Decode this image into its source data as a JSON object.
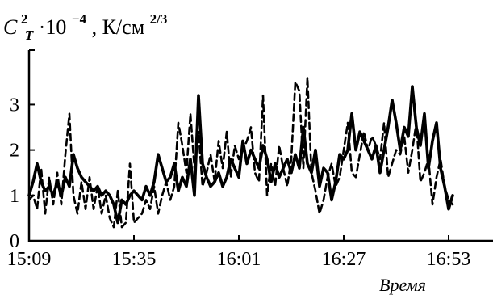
{
  "chart_data": {
    "type": "line",
    "title": "",
    "ylabel": {
      "symbol": "C",
      "subscript": "T",
      "superscript": "2",
      "factor": "·10",
      "exponent": "−4",
      "unit": ",  К/см",
      "unit_exponent": "2/3"
    },
    "xlabel": "Время",
    "xlim": [
      0,
      100
    ],
    "ylim": [
      0,
      4.2
    ],
    "y_ticks": [
      0,
      1,
      2,
      3
    ],
    "x_ticks": [
      {
        "label": "15:09",
        "x": 0
      },
      {
        "label": "15:35",
        "x": 26
      },
      {
        "label": "16:01",
        "x": 52
      },
      {
        "label": "16:27",
        "x": 78
      },
      {
        "label": "16:53",
        "x": 104
      }
    ],
    "grid": false,
    "legend": "none",
    "series": [
      {
        "style": "solid",
        "color": "#000000",
        "points": [
          [
            0,
            1.0
          ],
          [
            1,
            1.3
          ],
          [
            2,
            1.7
          ],
          [
            3,
            1.3
          ],
          [
            4,
            1.1
          ],
          [
            5,
            1.2
          ],
          [
            6,
            1.0
          ],
          [
            7,
            1.3
          ],
          [
            8,
            1.0
          ],
          [
            9,
            1.4
          ],
          [
            10,
            1.2
          ],
          [
            11,
            1.9
          ],
          [
            12,
            1.6
          ],
          [
            13,
            1.4
          ],
          [
            14,
            1.3
          ],
          [
            15,
            1.2
          ],
          [
            16,
            1.1
          ],
          [
            17,
            1.2
          ],
          [
            18,
            1.0
          ],
          [
            19,
            1.1
          ],
          [
            20,
            1.0
          ],
          [
            21,
            0.8
          ],
          [
            22,
            0.4
          ],
          [
            23,
            0.9
          ],
          [
            24,
            0.8
          ],
          [
            25,
            1.0
          ],
          [
            26,
            1.1
          ],
          [
            27,
            1.0
          ],
          [
            28,
            0.9
          ],
          [
            29,
            1.2
          ],
          [
            30,
            1.0
          ],
          [
            31,
            1.3
          ],
          [
            32,
            1.9
          ],
          [
            33,
            1.6
          ],
          [
            34,
            1.3
          ],
          [
            35,
            1.4
          ],
          [
            36,
            1.7
          ],
          [
            37,
            1.1
          ],
          [
            38,
            1.4
          ],
          [
            39,
            1.2
          ],
          [
            40,
            1.8
          ],
          [
            41,
            1.0
          ],
          [
            42,
            3.2
          ],
          [
            43,
            1.7
          ],
          [
            44,
            1.4
          ],
          [
            45,
            1.2
          ],
          [
            46,
            1.3
          ],
          [
            47,
            1.5
          ],
          [
            48,
            1.2
          ],
          [
            49,
            1.4
          ],
          [
            50,
            1.8
          ],
          [
            51,
            1.6
          ],
          [
            52,
            1.4
          ],
          [
            53,
            2.2
          ],
          [
            54,
            1.7
          ],
          [
            55,
            2.0
          ],
          [
            56,
            1.8
          ],
          [
            57,
            1.6
          ],
          [
            58,
            2.1
          ],
          [
            59,
            1.8
          ],
          [
            60,
            1.3
          ],
          [
            61,
            1.7
          ],
          [
            62,
            1.4
          ],
          [
            63,
            1.6
          ],
          [
            64,
            1.8
          ],
          [
            65,
            1.5
          ],
          [
            66,
            1.9
          ],
          [
            67,
            1.6
          ],
          [
            68,
            2.5
          ],
          [
            69,
            1.7
          ],
          [
            70,
            1.5
          ],
          [
            71,
            2.0
          ],
          [
            72,
            1.2
          ],
          [
            73,
            1.6
          ],
          [
            74,
            1.5
          ],
          [
            75,
            0.9
          ],
          [
            76,
            1.3
          ],
          [
            77,
            1.9
          ],
          [
            78,
            1.8
          ],
          [
            79,
            2.0
          ],
          [
            80,
            2.8
          ],
          [
            81,
            2.0
          ],
          [
            82,
            2.4
          ],
          [
            83,
            2.2
          ],
          [
            84,
            2.0
          ],
          [
            85,
            1.8
          ],
          [
            86,
            2.1
          ],
          [
            87,
            1.5
          ],
          [
            88,
            2.0
          ],
          [
            89,
            2.5
          ],
          [
            90,
            3.1
          ],
          [
            91,
            2.6
          ],
          [
            92,
            2.0
          ],
          [
            93,
            2.5
          ],
          [
            94,
            2.3
          ],
          [
            95,
            3.4
          ],
          [
            96,
            2.5
          ],
          [
            97,
            2.1
          ],
          [
            98,
            2.8
          ],
          [
            99,
            1.6
          ],
          [
            100,
            2.2
          ],
          [
            101,
            2.6
          ],
          [
            102,
            1.6
          ],
          [
            103,
            1.2
          ],
          [
            104,
            0.7
          ],
          [
            105,
            1.0
          ]
        ]
      },
      {
        "style": "dashed",
        "color": "#000000",
        "points": [
          [
            0,
            0.9
          ],
          [
            1,
            1.0
          ],
          [
            2,
            0.7
          ],
          [
            3,
            1.6
          ],
          [
            4,
            0.6
          ],
          [
            5,
            1.4
          ],
          [
            6,
            0.8
          ],
          [
            7,
            1.5
          ],
          [
            8,
            0.8
          ],
          [
            9,
            1.9
          ],
          [
            10,
            2.8
          ],
          [
            11,
            1.0
          ],
          [
            12,
            0.6
          ],
          [
            13,
            1.3
          ],
          [
            14,
            0.7
          ],
          [
            15,
            1.4
          ],
          [
            16,
            0.7
          ],
          [
            17,
            1.2
          ],
          [
            18,
            0.6
          ],
          [
            19,
            1.0
          ],
          [
            20,
            0.5
          ],
          [
            21,
            0.3
          ],
          [
            22,
            1.1
          ],
          [
            23,
            0.3
          ],
          [
            24,
            0.4
          ],
          [
            25,
            1.7
          ],
          [
            26,
            0.4
          ],
          [
            27,
            0.5
          ],
          [
            28,
            0.6
          ],
          [
            29,
            0.9
          ],
          [
            30,
            0.7
          ],
          [
            31,
            1.2
          ],
          [
            32,
            0.6
          ],
          [
            33,
            1.0
          ],
          [
            34,
            1.3
          ],
          [
            35,
            0.9
          ],
          [
            36,
            1.2
          ],
          [
            37,
            2.6
          ],
          [
            38,
            2.1
          ],
          [
            39,
            1.5
          ],
          [
            40,
            2.8
          ],
          [
            41,
            1.6
          ],
          [
            42,
            2.4
          ],
          [
            43,
            1.2
          ],
          [
            44,
            1.5
          ],
          [
            45,
            1.9
          ],
          [
            46,
            1.3
          ],
          [
            47,
            2.2
          ],
          [
            48,
            1.6
          ],
          [
            49,
            2.4
          ],
          [
            50,
            1.4
          ],
          [
            51,
            2.1
          ],
          [
            52,
            1.8
          ],
          [
            53,
            2.0
          ],
          [
            54,
            2.2
          ],
          [
            55,
            2.5
          ],
          [
            56,
            1.5
          ],
          [
            57,
            1.3
          ],
          [
            58,
            3.2
          ],
          [
            59,
            1.0
          ],
          [
            60,
            1.7
          ],
          [
            61,
            1.2
          ],
          [
            62,
            2.1
          ],
          [
            63,
            1.6
          ],
          [
            64,
            1.2
          ],
          [
            65,
            1.8
          ],
          [
            66,
            3.5
          ],
          [
            67,
            3.3
          ],
          [
            68,
            1.6
          ],
          [
            69,
            3.6
          ],
          [
            70,
            1.5
          ],
          [
            71,
            1.1
          ],
          [
            72,
            0.6
          ],
          [
            73,
            0.9
          ],
          [
            74,
            1.4
          ],
          [
            75,
            1.7
          ],
          [
            76,
            1.2
          ],
          [
            77,
            1.4
          ],
          [
            78,
            2.0
          ],
          [
            79,
            2.6
          ],
          [
            80,
            1.5
          ],
          [
            81,
            1.4
          ],
          [
            82,
            1.9
          ],
          [
            83,
            2.4
          ],
          [
            84,
            2.0
          ],
          [
            85,
            2.3
          ],
          [
            86,
            2.1
          ],
          [
            87,
            1.8
          ],
          [
            88,
            2.6
          ],
          [
            89,
            1.4
          ],
          [
            90,
            1.7
          ],
          [
            91,
            2.0
          ],
          [
            92,
            1.9
          ],
          [
            93,
            2.3
          ],
          [
            94,
            1.5
          ],
          [
            95,
            2.0
          ],
          [
            96,
            2.6
          ],
          [
            97,
            1.3
          ],
          [
            98,
            1.5
          ],
          [
            99,
            1.8
          ],
          [
            100,
            0.8
          ],
          [
            101,
            1.4
          ],
          [
            102,
            1.8
          ],
          [
            103,
            1.2
          ],
          [
            104,
            0.9
          ],
          [
            105,
            0.8
          ]
        ]
      }
    ]
  }
}
